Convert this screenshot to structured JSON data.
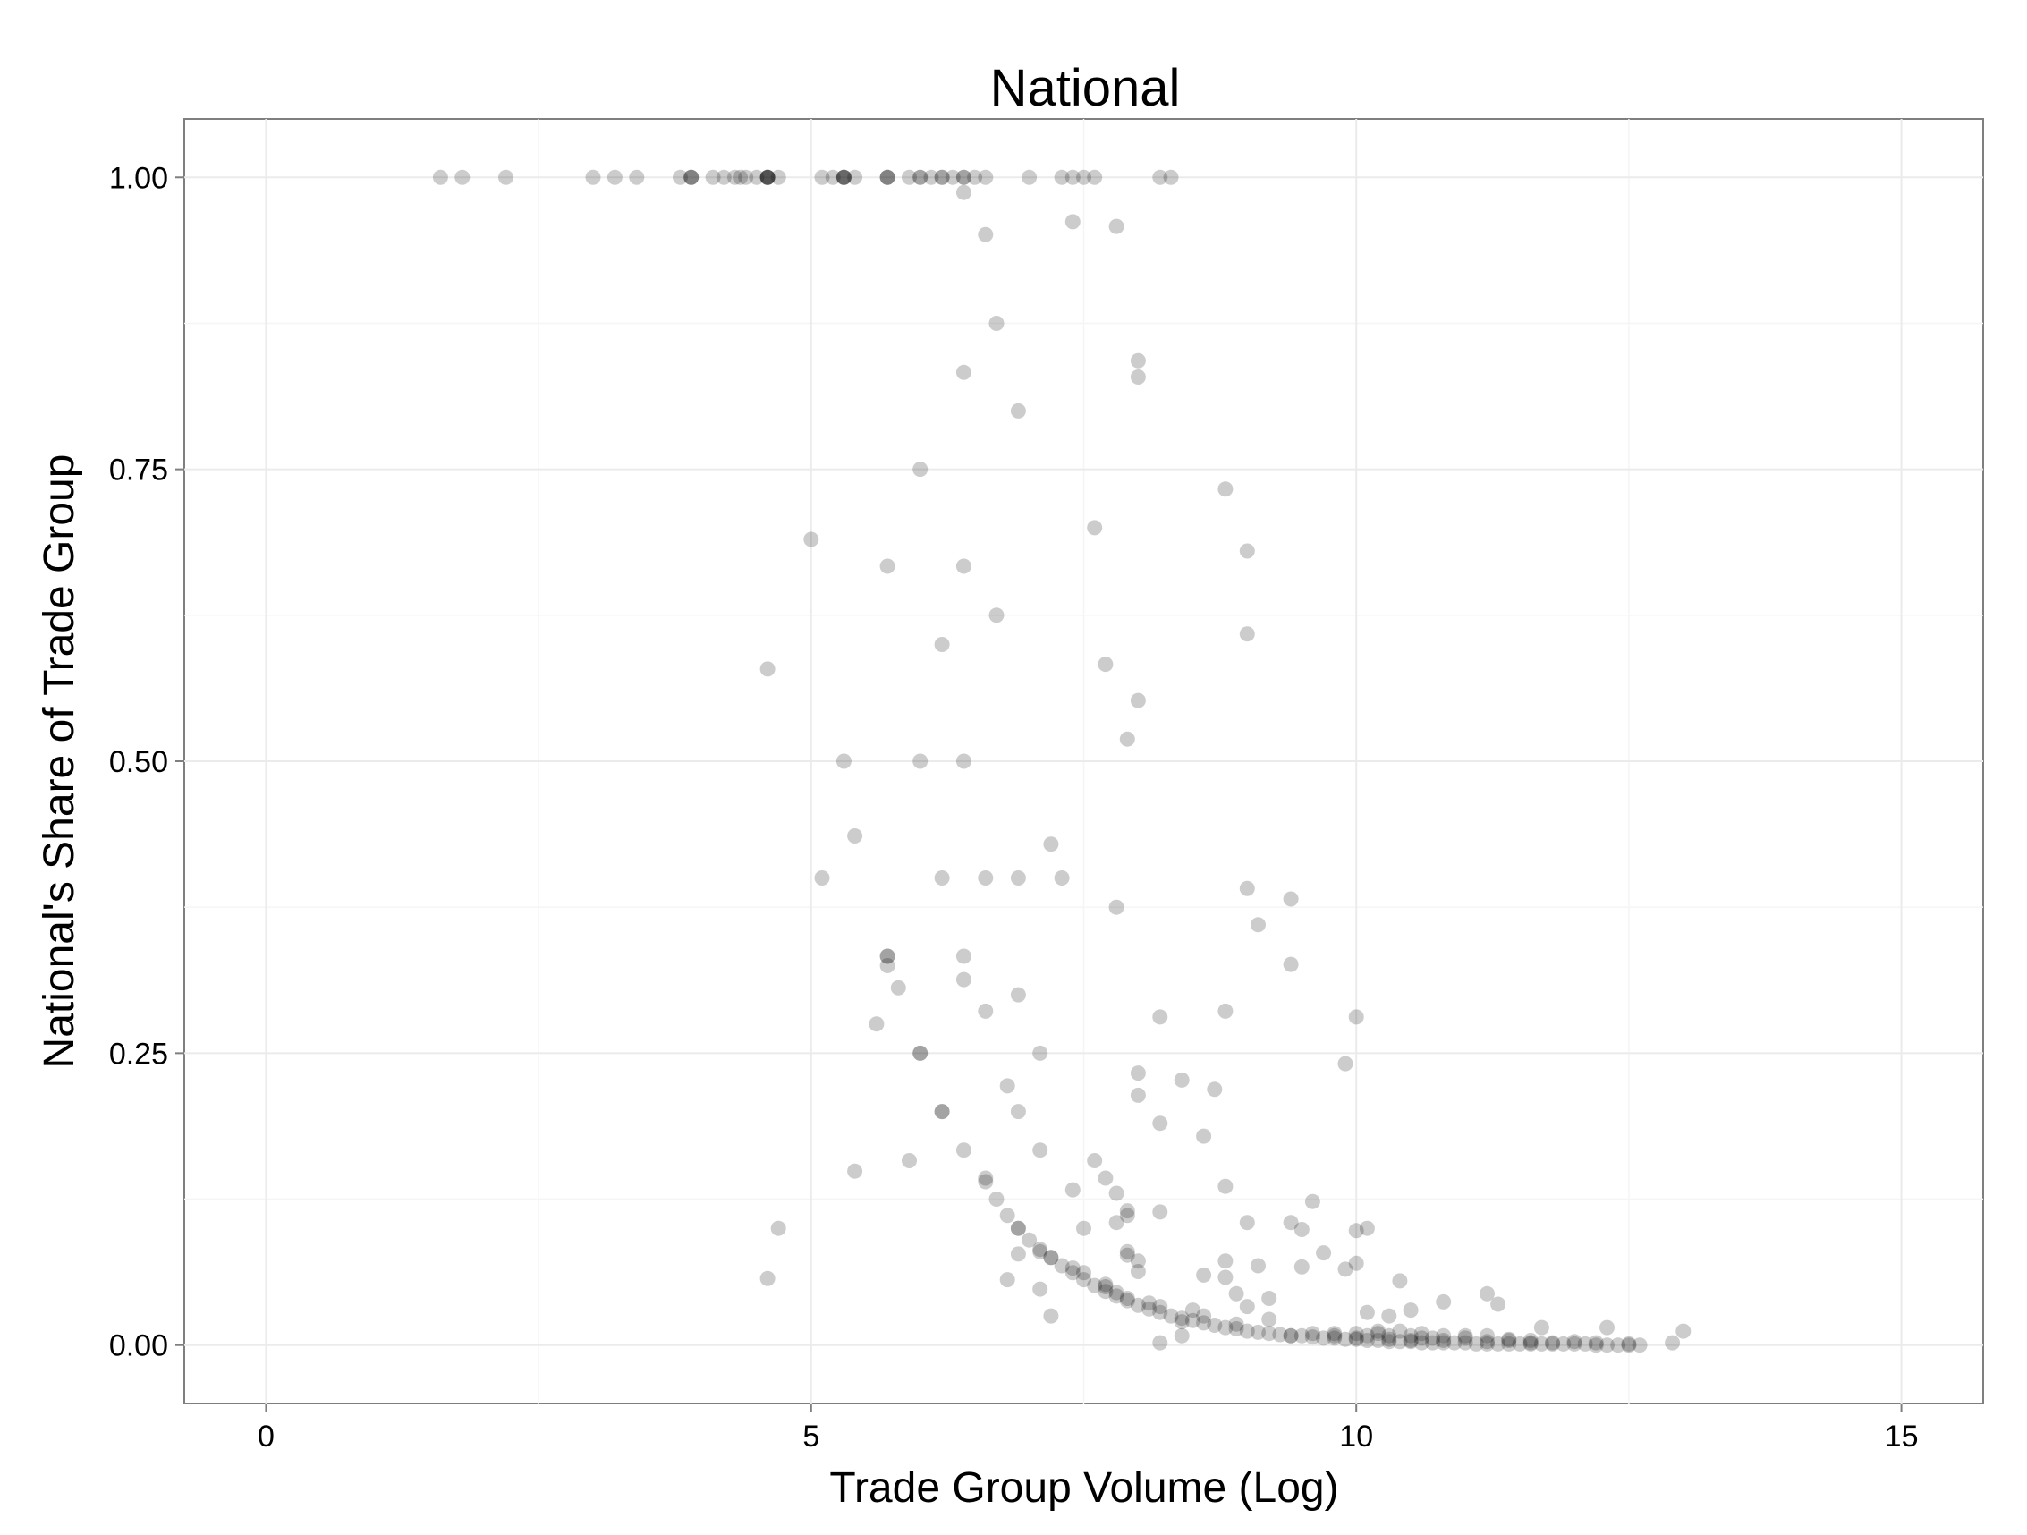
{
  "chart_data": {
    "type": "scatter",
    "title": "National",
    "xlabel": "Trade Group Volume (Log)",
    "ylabel": "National's Share of Trade Group",
    "xlim": [
      -0.75,
      15.75
    ],
    "ylim": [
      -0.05,
      1.05
    ],
    "x_ticks": [
      0,
      5,
      10,
      15
    ],
    "x_tick_labels": [
      "0",
      "5",
      "10",
      "15"
    ],
    "y_ticks": [
      0,
      0.25,
      0.5,
      0.75,
      1
    ],
    "y_tick_labels": [
      "0.00",
      "0.25",
      "0.50",
      "0.75",
      "1.00"
    ],
    "point_color": "#000000",
    "point_opacity": 0.2,
    "grid": true,
    "points": [
      [
        1.6,
        1
      ],
      [
        1.8,
        1
      ],
      [
        2.2,
        1
      ],
      [
        3.0,
        1
      ],
      [
        3.2,
        1
      ],
      [
        3.4,
        1
      ],
      [
        3.8,
        1
      ],
      [
        3.9,
        1
      ],
      [
        3.9,
        1
      ],
      [
        3.9,
        1
      ],
      [
        4.1,
        1
      ],
      [
        4.2,
        1
      ],
      [
        4.3,
        1
      ],
      [
        4.35,
        1
      ],
      [
        4.4,
        1
      ],
      [
        4.5,
        1
      ],
      [
        4.6,
        1
      ],
      [
        4.6,
        1
      ],
      [
        4.6,
        1
      ],
      [
        4.6,
        1
      ],
      [
        4.6,
        1
      ],
      [
        4.7,
        1
      ],
      [
        5.1,
        1
      ],
      [
        5.2,
        1
      ],
      [
        5.3,
        1
      ],
      [
        5.3,
        1
      ],
      [
        5.3,
        1
      ],
      [
        5.3,
        1
      ],
      [
        5.4,
        1
      ],
      [
        5.7,
        1
      ],
      [
        5.7,
        1
      ],
      [
        5.7,
        1
      ],
      [
        5.9,
        1
      ],
      [
        6.0,
        1
      ],
      [
        6.0,
        1
      ],
      [
        6.1,
        1
      ],
      [
        6.2,
        1
      ],
      [
        6.2,
        1
      ],
      [
        6.3,
        1
      ],
      [
        6.4,
        1
      ],
      [
        6.4,
        1
      ],
      [
        6.5,
        1
      ],
      [
        6.6,
        1
      ],
      [
        7.0,
        1
      ],
      [
        7.3,
        1
      ],
      [
        7.4,
        1
      ],
      [
        7.5,
        1
      ],
      [
        7.6,
        1
      ],
      [
        8.2,
        1
      ],
      [
        8.3,
        1
      ],
      [
        6.4,
        0.987
      ],
      [
        6.6,
        0.951
      ],
      [
        7.4,
        0.962
      ],
      [
        7.8,
        0.958
      ],
      [
        6.7,
        0.875
      ],
      [
        6.4,
        0.833
      ],
      [
        8.0,
        0.843
      ],
      [
        8.0,
        0.829
      ],
      [
        6.9,
        0.8
      ],
      [
        6.0,
        0.75
      ],
      [
        8.8,
        0.733
      ],
      [
        7.6,
        0.7
      ],
      [
        5.0,
        0.69
      ],
      [
        9.0,
        0.68
      ],
      [
        5.7,
        0.667
      ],
      [
        6.4,
        0.667
      ],
      [
        6.7,
        0.625
      ],
      [
        9.0,
        0.609
      ],
      [
        6.2,
        0.6
      ],
      [
        7.7,
        0.583
      ],
      [
        4.6,
        0.579
      ],
      [
        8.0,
        0.552
      ],
      [
        7.9,
        0.519
      ],
      [
        5.3,
        0.5
      ],
      [
        6.0,
        0.5
      ],
      [
        6.4,
        0.5
      ],
      [
        5.4,
        0.436
      ],
      [
        7.2,
        0.429
      ],
      [
        5.1,
        0.4
      ],
      [
        6.2,
        0.4
      ],
      [
        6.6,
        0.4
      ],
      [
        6.9,
        0.4
      ],
      [
        7.3,
        0.4
      ],
      [
        9.0,
        0.391
      ],
      [
        9.4,
        0.382
      ],
      [
        7.8,
        0.375
      ],
      [
        9.1,
        0.36
      ],
      [
        5.7,
        0.333
      ],
      [
        5.7,
        0.333
      ],
      [
        6.4,
        0.333
      ],
      [
        5.7,
        0.325
      ],
      [
        9.4,
        0.326
      ],
      [
        6.4,
        0.313
      ],
      [
        5.8,
        0.306
      ],
      [
        6.9,
        0.3
      ],
      [
        6.6,
        0.286
      ],
      [
        8.8,
        0.286
      ],
      [
        8.2,
        0.281
      ],
      [
        10.0,
        0.281
      ],
      [
        5.6,
        0.275
      ],
      [
        6.0,
        0.25
      ],
      [
        6.0,
        0.25
      ],
      [
        7.1,
        0.25
      ],
      [
        9.9,
        0.241
      ],
      [
        8.0,
        0.233
      ],
      [
        8.4,
        0.227
      ],
      [
        6.8,
        0.222
      ],
      [
        8.7,
        0.219
      ],
      [
        8.0,
        0.214
      ],
      [
        6.2,
        0.2
      ],
      [
        6.2,
        0.2
      ],
      [
        6.9,
        0.2
      ],
      [
        8.2,
        0.19
      ],
      [
        8.6,
        0.179
      ],
      [
        6.4,
        0.167
      ],
      [
        7.1,
        0.167
      ],
      [
        5.9,
        0.158
      ],
      [
        7.6,
        0.158
      ],
      [
        5.4,
        0.149
      ],
      [
        7.7,
        0.143
      ],
      [
        6.6,
        0.143
      ],
      [
        6.6,
        0.14
      ],
      [
        8.8,
        0.136
      ],
      [
        7.4,
        0.133
      ],
      [
        7.8,
        0.13
      ],
      [
        6.7,
        0.125
      ],
      [
        9.6,
        0.123
      ],
      [
        6.8,
        0.111
      ],
      [
        7.9,
        0.115
      ],
      [
        8.2,
        0.114
      ],
      [
        7.9,
        0.111
      ],
      [
        7.8,
        0.105
      ],
      [
        9.0,
        0.105
      ],
      [
        9.4,
        0.105
      ],
      [
        4.7,
        0.1
      ],
      [
        6.9,
        0.1
      ],
      [
        7.5,
        0.1
      ],
      [
        9.5,
        0.099
      ],
      [
        10.1,
        0.1
      ],
      [
        10.0,
        0.098
      ],
      [
        7.1,
        0.08
      ],
      [
        7.2,
        0.075
      ],
      [
        6.9,
        0.078
      ],
      [
        7.9,
        0.08
      ],
      [
        7.9,
        0.077
      ],
      [
        9.7,
        0.079
      ],
      [
        8.0,
        0.072
      ],
      [
        8.8,
        0.072
      ],
      [
        10.0,
        0.07
      ],
      [
        9.1,
        0.068
      ],
      [
        9.5,
        0.067
      ],
      [
        7.4,
        0.066
      ],
      [
        7.5,
        0.062
      ],
      [
        9.9,
        0.065
      ],
      [
        8.0,
        0.063
      ],
      [
        8.6,
        0.06
      ],
      [
        8.8,
        0.058
      ],
      [
        4.6,
        0.057
      ],
      [
        6.8,
        0.056
      ],
      [
        10.4,
        0.055
      ],
      [
        7.7,
        0.052
      ],
      [
        7.7,
        0.05
      ],
      [
        7.1,
        0.048
      ],
      [
        7.8,
        0.045
      ],
      [
        8.9,
        0.044
      ],
      [
        9.2,
        0.04
      ],
      [
        11.2,
        0.044
      ],
      [
        10.8,
        0.037
      ],
      [
        7.9,
        0.04
      ],
      [
        8.1,
        0.036
      ],
      [
        8.2,
        0.033
      ],
      [
        9.0,
        0.033
      ],
      [
        11.3,
        0.035
      ],
      [
        8.5,
        0.03
      ],
      [
        10.5,
        0.03
      ],
      [
        7.2,
        0.025
      ],
      [
        8.6,
        0.025
      ],
      [
        9.2,
        0.022
      ],
      [
        10.1,
        0.028
      ],
      [
        10.3,
        0.025
      ],
      [
        8.4,
        0.02
      ],
      [
        8.9,
        0.018
      ],
      [
        11.7,
        0.015
      ],
      [
        12.3,
        0.015
      ],
      [
        13.0,
        0.012
      ],
      [
        8.2,
        0.002
      ],
      [
        8.4,
        0.008
      ],
      [
        9.4,
        0.008
      ],
      [
        9.8,
        0.008
      ],
      [
        10.0,
        0.006
      ],
      [
        10.2,
        0.01
      ],
      [
        10.3,
        0.005
      ],
      [
        10.5,
        0.004
      ],
      [
        10.6,
        0.006
      ],
      [
        10.8,
        0.004
      ],
      [
        11.0,
        0.006
      ],
      [
        11.2,
        0.003
      ],
      [
        11.4,
        0.004
      ],
      [
        11.6,
        0.002
      ],
      [
        11.8,
        0.002
      ],
      [
        12.0,
        0.003
      ],
      [
        12.2,
        0.002
      ],
      [
        12.5,
        0.001
      ],
      [
        12.9,
        0.002
      ]
    ],
    "curve_points": [
      [
        6.9,
        0.1
      ],
      [
        7.0,
        0.09
      ],
      [
        7.1,
        0.082
      ],
      [
        7.2,
        0.075
      ],
      [
        7.3,
        0.068
      ],
      [
        7.4,
        0.062
      ],
      [
        7.5,
        0.056
      ],
      [
        7.6,
        0.051
      ],
      [
        7.7,
        0.046
      ],
      [
        7.8,
        0.042
      ],
      [
        7.9,
        0.038
      ],
      [
        8.0,
        0.034
      ],
      [
        8.1,
        0.031
      ],
      [
        8.2,
        0.028
      ],
      [
        8.3,
        0.025
      ],
      [
        8.4,
        0.023
      ],
      [
        8.5,
        0.021
      ],
      [
        8.6,
        0.019
      ],
      [
        8.7,
        0.017
      ],
      [
        8.8,
        0.015
      ],
      [
        8.9,
        0.014
      ],
      [
        9.0,
        0.012
      ],
      [
        9.1,
        0.011
      ],
      [
        9.2,
        0.01
      ],
      [
        9.3,
        0.009
      ],
      [
        9.4,
        0.008
      ],
      [
        9.5,
        0.008
      ],
      [
        9.6,
        0.007
      ],
      [
        9.7,
        0.006
      ],
      [
        9.8,
        0.006
      ],
      [
        9.9,
        0.005
      ],
      [
        10.0,
        0.005
      ],
      [
        10.1,
        0.004
      ],
      [
        10.2,
        0.004
      ],
      [
        10.3,
        0.003
      ],
      [
        10.4,
        0.003
      ],
      [
        10.5,
        0.003
      ],
      [
        10.6,
        0.002
      ],
      [
        10.7,
        0.002
      ],
      [
        10.8,
        0.002
      ],
      [
        10.9,
        0.002
      ],
      [
        11.0,
        0.002
      ],
      [
        11.1,
        0.001
      ],
      [
        11.2,
        0.001
      ],
      [
        11.3,
        0.001
      ],
      [
        11.4,
        0.001
      ],
      [
        11.5,
        0.001
      ],
      [
        11.6,
        0.001
      ],
      [
        11.7,
        0.001
      ],
      [
        11.8,
        0.001
      ],
      [
        11.9,
        0.001
      ],
      [
        12.0,
        0.001
      ],
      [
        12.1,
        0.001
      ],
      [
        12.2,
        0.0
      ],
      [
        12.3,
        0.0
      ],
      [
        12.4,
        0.0
      ],
      [
        12.5,
        0.0
      ],
      [
        12.6,
        0.0
      ],
      [
        10.0,
        0.01
      ],
      [
        10.2,
        0.012
      ],
      [
        10.4,
        0.012
      ],
      [
        10.6,
        0.01
      ],
      [
        10.8,
        0.008
      ],
      [
        10.3,
        0.008
      ],
      [
        10.5,
        0.008
      ],
      [
        10.7,
        0.006
      ],
      [
        9.6,
        0.01
      ],
      [
        9.8,
        0.01
      ],
      [
        10.1,
        0.008
      ],
      [
        11.0,
        0.008
      ],
      [
        11.2,
        0.008
      ],
      [
        11.4,
        0.005
      ],
      [
        11.6,
        0.004
      ]
    ]
  }
}
